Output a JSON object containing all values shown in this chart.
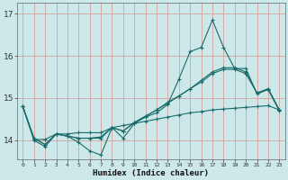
{
  "xlabel": "Humidex (Indice chaleur)",
  "xlim": [
    -0.5,
    23.5
  ],
  "ylim": [
    13.55,
    17.25
  ],
  "yticks": [
    14,
    15,
    16,
    17
  ],
  "xtick_labels": [
    "0",
    "1",
    "2",
    "3",
    "4",
    "5",
    "6",
    "7",
    "8",
    "9",
    "10",
    "11",
    "12",
    "13",
    "14",
    "15",
    "16",
    "17",
    "18",
    "19",
    "20",
    "21",
    "22",
    "23"
  ],
  "background_color": "#cce8e8",
  "grid_color": "#d4a0a0",
  "line_color": "#1a6b6b",
  "line1": [
    14.8,
    14.0,
    13.85,
    14.15,
    14.1,
    13.95,
    13.75,
    13.65,
    14.3,
    14.05,
    14.4,
    14.55,
    14.65,
    14.85,
    15.45,
    16.1,
    16.2,
    16.85,
    16.2,
    15.7,
    15.7,
    15.1,
    15.2,
    14.7
  ],
  "line2": [
    14.8,
    14.05,
    13.9,
    14.15,
    14.1,
    14.05,
    14.05,
    14.05,
    14.3,
    14.22,
    14.42,
    14.57,
    14.72,
    14.9,
    15.05,
    15.22,
    15.42,
    15.62,
    15.72,
    15.72,
    15.62,
    15.12,
    15.22,
    14.72
  ],
  "line3": [
    14.8,
    14.05,
    13.9,
    14.15,
    14.1,
    14.05,
    14.05,
    14.08,
    14.3,
    14.22,
    14.42,
    14.57,
    14.72,
    14.88,
    15.05,
    15.22,
    15.38,
    15.58,
    15.68,
    15.68,
    15.58,
    15.12,
    15.22,
    14.72
  ],
  "line4": [
    14.8,
    14.02,
    14.02,
    14.15,
    14.15,
    14.18,
    14.18,
    14.18,
    14.3,
    14.35,
    14.4,
    14.45,
    14.5,
    14.55,
    14.6,
    14.65,
    14.68,
    14.72,
    14.74,
    14.76,
    14.78,
    14.8,
    14.82,
    14.72
  ]
}
